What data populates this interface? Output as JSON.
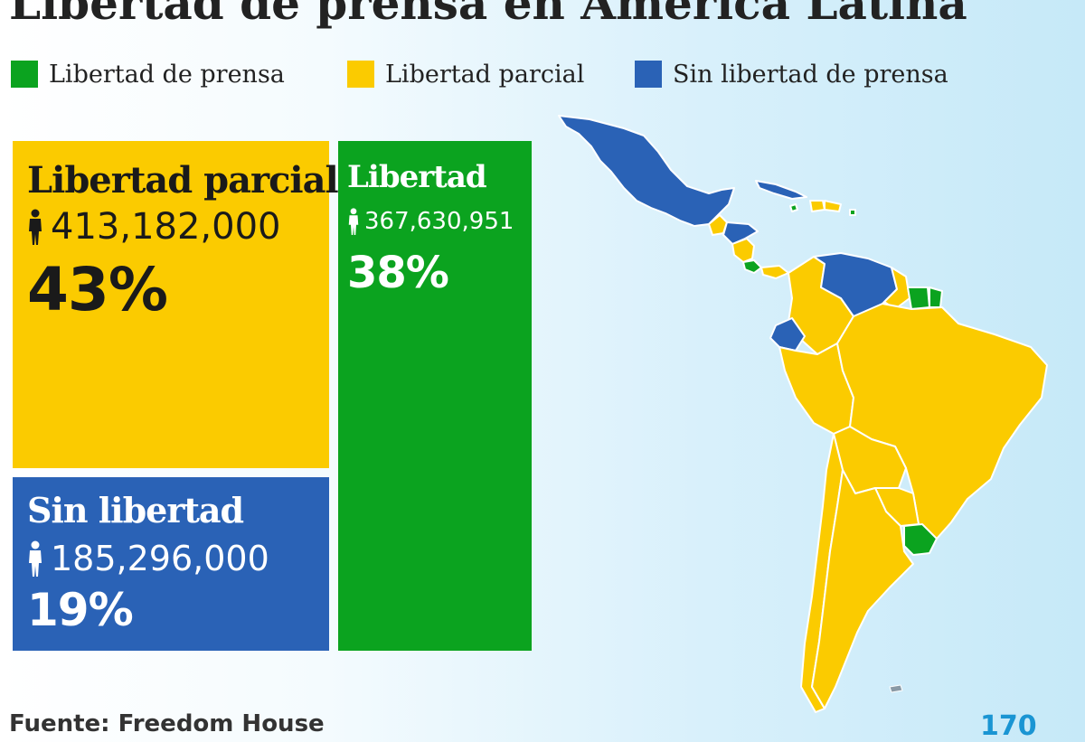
{
  "header": {
    "title": "Libertad de prensa en América Latina"
  },
  "legend": {
    "items": [
      {
        "label": "Libertad de prensa",
        "color": "#0ba31f"
      },
      {
        "label": "Libertad parcial",
        "color": "#fbcb00"
      },
      {
        "label": "Sin libertad de prensa",
        "color": "#2a62b6"
      }
    ]
  },
  "chart_data": {
    "type": "treemap",
    "unit": "%",
    "categories": [
      "Libertad parcial",
      "Libertad",
      "Sin libertad"
    ],
    "values": [
      43,
      38,
      19
    ],
    "population": [
      413182000,
      367630951,
      185296000
    ],
    "colors": [
      "#fbcb00",
      "#0ba31f",
      "#2a62b6"
    ],
    "boxes": [
      {
        "label": "Libertad parcial",
        "population_text": "413,182,000",
        "percent_text": "43%"
      },
      {
        "label": "Libertad",
        "population_text": "367,630,951",
        "percent_text": "38%"
      },
      {
        "label": "Sin libertad",
        "population_text": "185,296,000",
        "percent_text": "19%"
      }
    ]
  },
  "map": {
    "icon": "latin-america-map",
    "colors": {
      "free": "#0ba31f",
      "partial": "#fbcb00",
      "not_free": "#2a62b6"
    }
  },
  "footer": {
    "source": "Fuente: Freedom House",
    "logo": "170"
  }
}
